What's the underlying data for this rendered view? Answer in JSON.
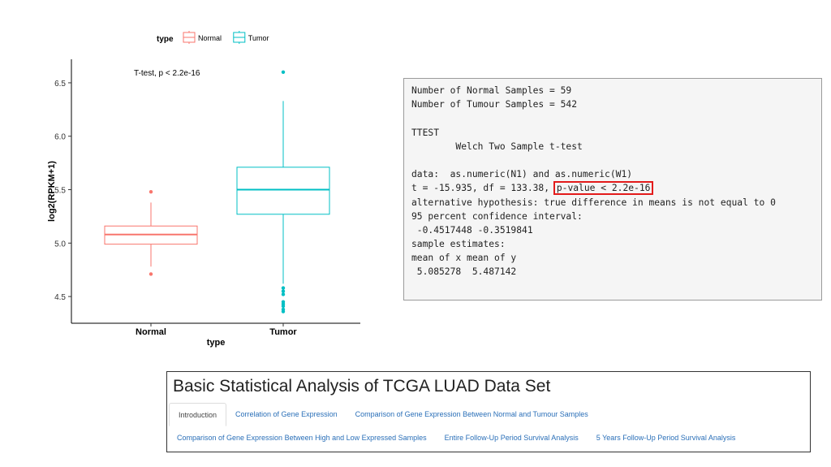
{
  "chart_data": {
    "type": "boxplot",
    "legend": {
      "title": "type",
      "entries": [
        "Normal",
        "Tumor"
      ],
      "position": "top"
    },
    "annotation": "T-test, p < 2.2e-16",
    "xlabel": "type",
    "ylabel": "log2(RPKM+1)",
    "categories": [
      "Normal",
      "Tumor"
    ],
    "yticks": [
      4.5,
      5.0,
      5.5,
      6.0,
      6.5
    ],
    "ylim": [
      4.25,
      6.72
    ],
    "grid": false,
    "colors": {
      "Normal": "#f8766d",
      "Tumor": "#00bfc4"
    },
    "series": [
      {
        "name": "Normal",
        "q1": 4.99,
        "median": 5.08,
        "q3": 5.16,
        "whisker_low": 4.78,
        "whisker_high": 5.38,
        "outliers": [
          5.48,
          4.71
        ]
      },
      {
        "name": "Tumor",
        "q1": 5.27,
        "median": 5.5,
        "q3": 5.71,
        "whisker_low": 4.62,
        "whisker_high": 6.33,
        "outliers": [
          6.6,
          4.58,
          4.55,
          4.52,
          4.45,
          4.43,
          4.41,
          4.38,
          4.36
        ]
      }
    ]
  },
  "console": {
    "lines": [
      "Number of Normal Samples = 59",
      "Number of Tumour Samples = 542",
      "",
      "TTEST",
      "        Welch Two Sample t-test",
      "",
      "data:  as.numeric(N1) and as.numeric(W1)",
      "t = -15.935, df = 133.38, ",
      "alternative hypothesis: true difference in means is not equal to 0",
      "95 percent confidence interval:",
      " -0.4517448 -0.3519841",
      "sample estimates:",
      "mean of x mean of y",
      " 5.085278  5.487142"
    ],
    "highlight": "p-value < 2.2e-16",
    "highlight_color": "#e31b1b"
  },
  "app": {
    "title": "Basic Statistical Analysis of TCGA LUAD Data Set",
    "tabs_row1": [
      "Introduction",
      "Correlation of Gene Expression",
      "Comparison of Gene Expression Between Normal and Tumour Samples"
    ],
    "tabs_row2": [
      "Comparison of Gene Expression Between High and Low Expressed Samples",
      "Entire Follow-Up Period Survival Analysis",
      "5 Years Follow-Up Period Survival Analysis"
    ],
    "active_tab": "Introduction",
    "link_color": "#2a6fb8"
  }
}
